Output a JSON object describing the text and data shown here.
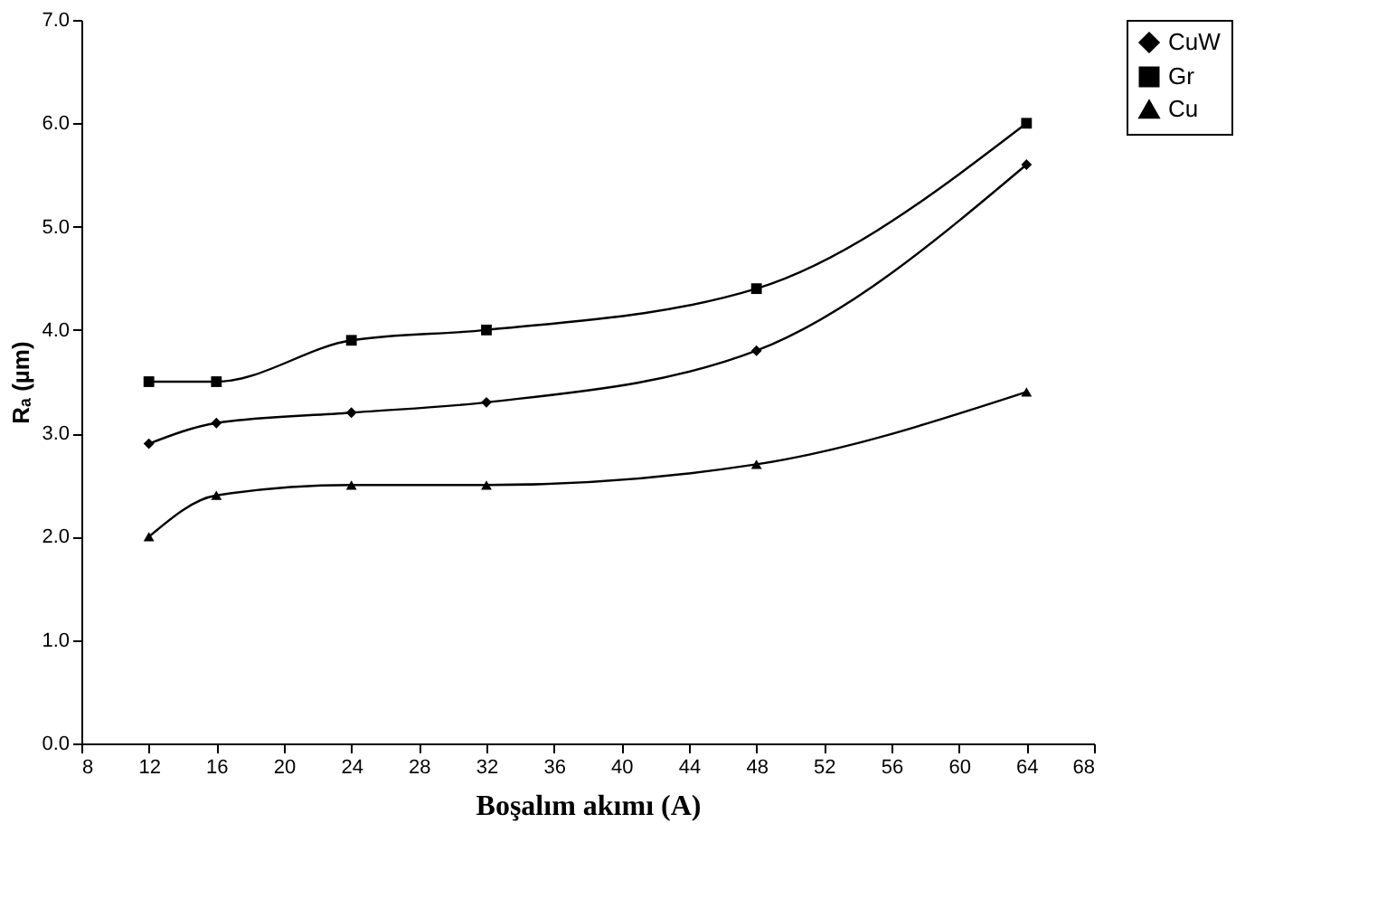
{
  "chart_data": {
    "type": "line",
    "xlabel": "Boşalım akımı (A)",
    "ylabel": "Rₐ (µm)",
    "x": [
      12,
      16,
      24,
      32,
      48,
      64
    ],
    "series": [
      {
        "name": "CuW",
        "color": "#000000",
        "marker": "diamond",
        "values": [
          2.9,
          3.1,
          3.2,
          3.3,
          3.8,
          5.6
        ]
      },
      {
        "name": "Gr",
        "color": "#000000",
        "marker": "square",
        "values": [
          3.5,
          3.5,
          3.9,
          4.0,
          4.4,
          6.0
        ]
      },
      {
        "name": "Cu",
        "color": "#000000",
        "marker": "triangle",
        "values": [
          2.0,
          2.4,
          2.5,
          2.5,
          2.7,
          3.4
        ]
      }
    ],
    "xlim": [
      8,
      68
    ],
    "xticks": [
      8,
      12,
      16,
      20,
      24,
      28,
      32,
      36,
      40,
      44,
      48,
      52,
      56,
      60,
      64,
      68
    ],
    "ylim": [
      0,
      7
    ],
    "yticks": [
      {
        "value": 0,
        "label": "0.0"
      },
      {
        "value": 1,
        "label": "1.0"
      },
      {
        "value": 2,
        "label": "2.0"
      },
      {
        "value": 3,
        "label": "3.0"
      },
      {
        "value": 4,
        "label": "4.0"
      },
      {
        "value": 5,
        "label": "5.0"
      },
      {
        "value": 6,
        "label": "6.0"
      },
      {
        "value": 7,
        "label": "7.0"
      }
    ],
    "grid": false,
    "legend": "right",
    "line_style": "solid"
  }
}
